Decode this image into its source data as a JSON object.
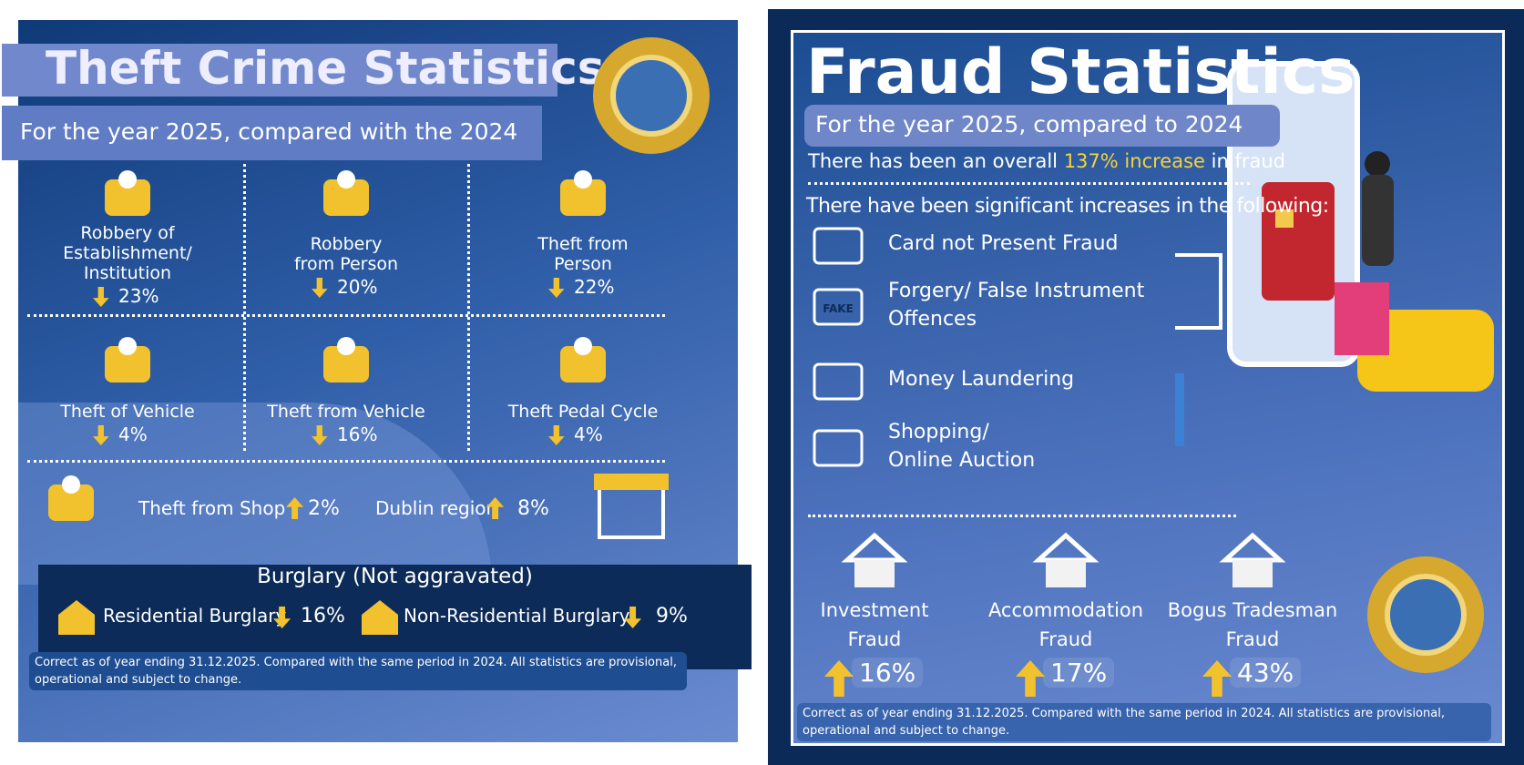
{
  "theft": {
    "title": "Theft Crime Statistics",
    "subtitle": "For the year 2025, compared with the 2024",
    "items": [
      {
        "label": [
          "Robbery of",
          "Establishment/",
          "Institution"
        ],
        "change": "23%",
        "direction": "down"
      },
      {
        "label": [
          "Robbery",
          "from Person"
        ],
        "change": "20%",
        "direction": "down"
      },
      {
        "label": [
          "Theft from",
          "Person"
        ],
        "change": "22%",
        "direction": "down"
      },
      {
        "label": [
          "Theft of Vehicle"
        ],
        "change": "4%",
        "direction": "down"
      },
      {
        "label": [
          "Theft from Vehicle"
        ],
        "change": "16%",
        "direction": "down"
      },
      {
        "label": [
          "Theft Pedal Cycle"
        ],
        "change": "4%",
        "direction": "down"
      }
    ],
    "shop": [
      {
        "label": "Theft from Shop",
        "change": "2%",
        "direction": "up"
      },
      {
        "label": "Dublin region",
        "change": "8%",
        "direction": "up"
      }
    ],
    "burglary": {
      "title": "Burglary (Not aggravated)",
      "items": [
        {
          "label": "Residential Burglary",
          "change": "16%",
          "direction": "down"
        },
        {
          "label": "Non-Residential Burglary",
          "change": "9%",
          "direction": "down"
        }
      ]
    },
    "footnote": "Correct as of year ending 31.12.2025. Compared with the same period in 2024. All statistics are provisional,  operational and subject to change."
  },
  "fraud": {
    "title": "Fraud Statistics",
    "subtitle": "For the year 2025, compared to 2024",
    "overall": {
      "before": "There has been an overall",
      "percent": "137%",
      "word": "increase",
      "after": "in fraud"
    },
    "heading": "There have been significant increases in the following:",
    "list": [
      {
        "label": [
          "Card not Present Fraud"
        ]
      },
      {
        "label": [
          "Forgery/ False Instrument",
          "Offences"
        ],
        "icon_text": "FAKE"
      },
      {
        "label": [
          "Money Laundering"
        ]
      },
      {
        "label": [
          "Shopping/",
          "Online Auction"
        ]
      }
    ],
    "bottom": [
      {
        "label": [
          "Investment",
          "Fraud"
        ],
        "change": "16%",
        "direction": "up"
      },
      {
        "label": [
          "Accommodation",
          "Fraud"
        ],
        "change": "17%",
        "direction": "up"
      },
      {
        "label": [
          "Bogus Tradesman",
          "Fraud"
        ],
        "change": "43%",
        "direction": "up"
      }
    ],
    "footnote": "Correct as of year ending 31.12.2025. Compared with the same period in 2024. All statistics are provisional,  operational and subject to change."
  }
}
